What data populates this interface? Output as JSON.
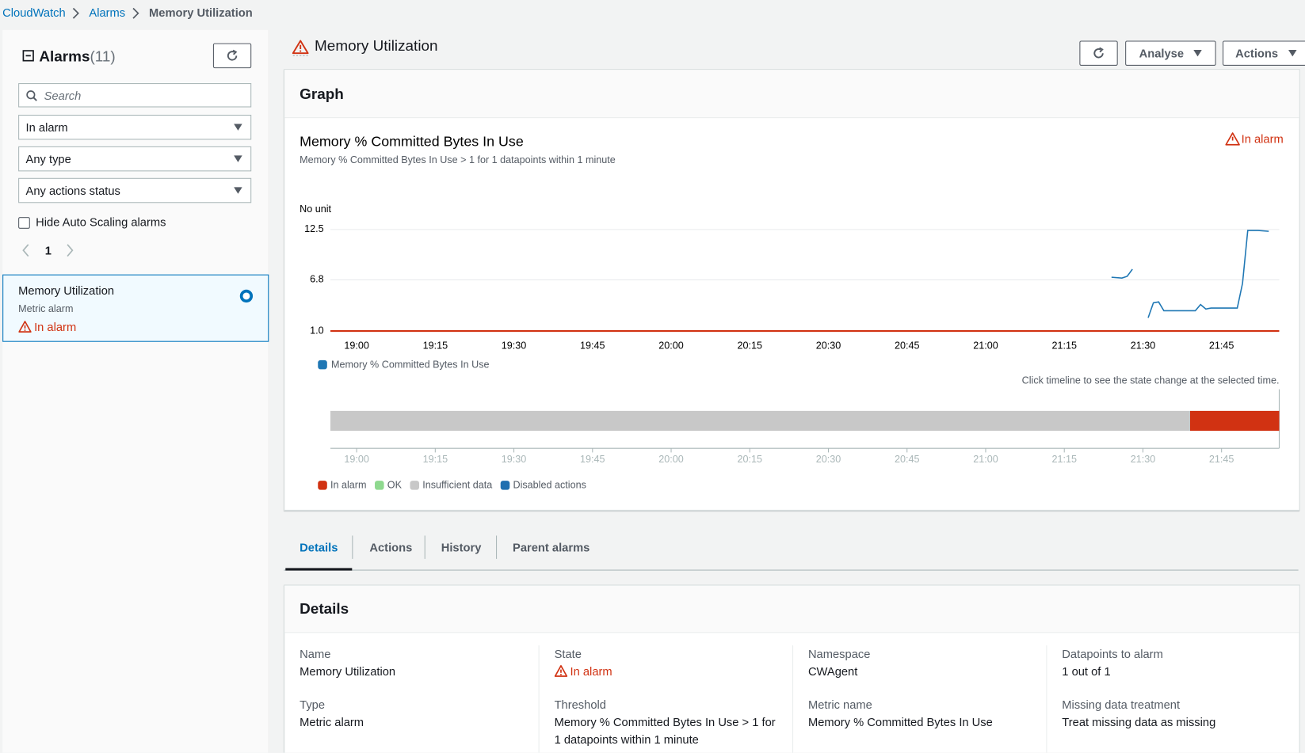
{
  "breadcrumb": [
    "CloudWatch",
    "Alarms",
    "Memory Utilization"
  ],
  "sidebar": {
    "title": "Alarms",
    "count": "(11)",
    "search_placeholder": "Search",
    "filters": [
      "In alarm",
      "Any type",
      "Any actions status"
    ],
    "checkbox_label": "Hide Auto Scaling alarms",
    "page": "1",
    "alarm": {
      "name": "Memory Utilization",
      "type": "Metric alarm",
      "state": "In alarm"
    }
  },
  "header": {
    "title": "Memory Utilization",
    "buttons": [
      "Analyse",
      "Actions"
    ]
  },
  "graph_panel": {
    "heading": "Graph"
  },
  "chart_data": [
    {
      "type": "line",
      "title": "Memory % Committed Bytes In Use",
      "subtitle": "Memory % Committed Bytes In Use > 1 for 1 datapoints within 1 minute",
      "state": "In alarm",
      "y_label": "No unit",
      "x": [
        "21:24",
        "21:26",
        "21:27",
        "21:28",
        "21:30",
        "21:31",
        "21:32",
        "21:33",
        "21:34",
        "21:40",
        "21:41",
        "21:42",
        "21:43",
        "21:48",
        "21:49",
        "21:50",
        "21:52",
        "21:54"
      ],
      "series": [
        {
          "name": "Memory % Committed Bytes In Use",
          "color": "#1f77b4",
          "values": [
            7.1,
            7.0,
            7.2,
            8.0,
            null,
            2.5,
            4.2,
            4.3,
            3.3,
            3.3,
            4.0,
            3.5,
            3.6,
            3.6,
            6.4,
            12.4,
            12.4,
            12.3
          ]
        }
      ],
      "threshold": 1,
      "threshold_color": "#d13212",
      "xlim": [
        "18:55",
        "21:56"
      ],
      "xticks": [
        "19:00",
        "19:15",
        "19:30",
        "19:45",
        "20:00",
        "20:15",
        "20:30",
        "20:45",
        "21:00",
        "21:15",
        "21:30",
        "21:45"
      ],
      "ylim": [
        1,
        12.5
      ],
      "yticks": [
        {
          "value": 1,
          "label": "1.0"
        },
        6.8,
        12.5
      ],
      "grid": true
    },
    {
      "type": "timeline",
      "note": "Click timeline to see the state change at the selected time.",
      "series": [
        {
          "name": "In alarm",
          "color": "#d13212",
          "ranges": [
            [
              "21:39",
              "21:56"
            ]
          ]
        },
        {
          "name": "OK",
          "color": "#8fd98f",
          "ranges": []
        },
        {
          "name": "Insufficient data",
          "color": "#c8c8c8",
          "ranges": [
            [
              "18:55",
              "21:39"
            ]
          ]
        },
        {
          "name": "Disabled actions",
          "color": "#1f6fb0",
          "ranges": []
        }
      ],
      "xlim": [
        "18:55",
        "21:56"
      ],
      "xticks": [
        "19:00",
        "19:15",
        "19:30",
        "19:45",
        "20:00",
        "20:15",
        "20:30",
        "20:45",
        "21:00",
        "21:15",
        "21:30",
        "21:45"
      ]
    }
  ],
  "tabs": [
    "Details",
    "Actions",
    "History",
    "Parent alarms"
  ],
  "details": {
    "heading": "Details",
    "columns": [
      [
        {
          "label": "Name",
          "value": "Memory Utilization"
        },
        {
          "label": "Type",
          "value": "Metric alarm"
        }
      ],
      [
        {
          "label": "State",
          "value": "In alarm"
        },
        {
          "label": "Threshold",
          "value": "Memory % Committed Bytes In Use > 1 for 1 datapoints within 1 minute"
        }
      ],
      [
        {
          "label": "Namespace",
          "value": "CWAgent"
        },
        {
          "label": "Metric name",
          "value": "Memory % Committed Bytes In Use"
        }
      ],
      [
        {
          "label": "Datapoints to alarm",
          "value": "1 out of 1"
        },
        {
          "label": "Missing data treatment",
          "value": "Treat missing data as missing"
        }
      ]
    ]
  }
}
